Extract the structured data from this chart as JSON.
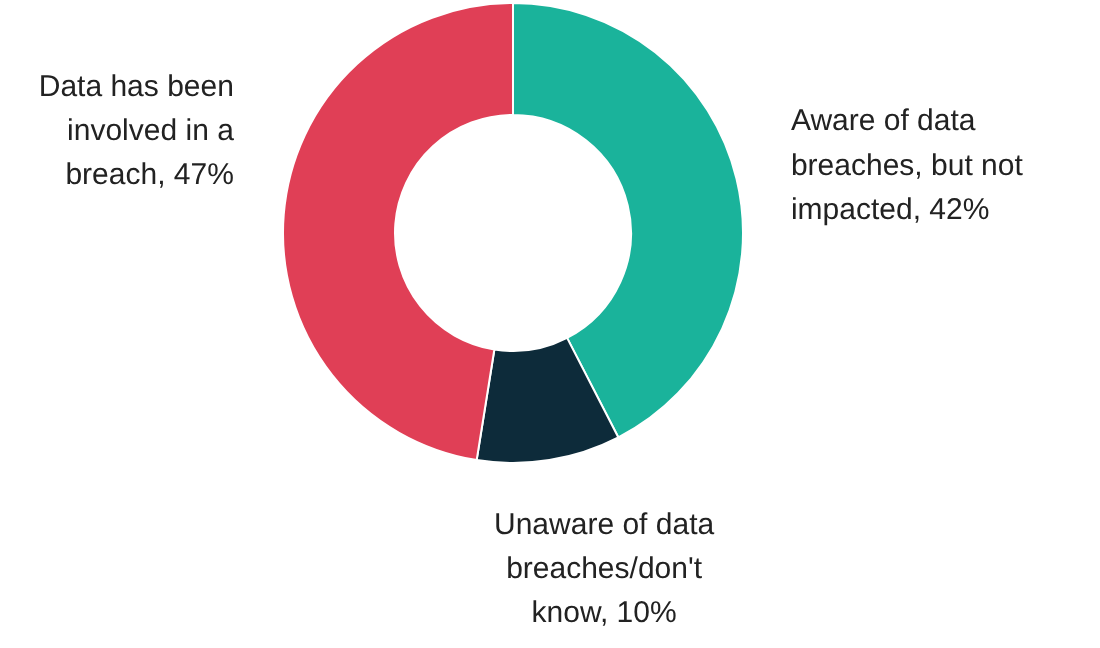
{
  "chart_data": {
    "type": "donut",
    "categories": [
      "Aware of data breaches, but not impacted",
      "Unaware of data breaches/don't know",
      "Data has been involved in a breach"
    ],
    "values": [
      42,
      10,
      47
    ],
    "value_labels": [
      "42%",
      "10%",
      "47%"
    ],
    "colors": [
      "#1ab39b",
      "#0d2b3a",
      "#e03f56"
    ]
  }
}
